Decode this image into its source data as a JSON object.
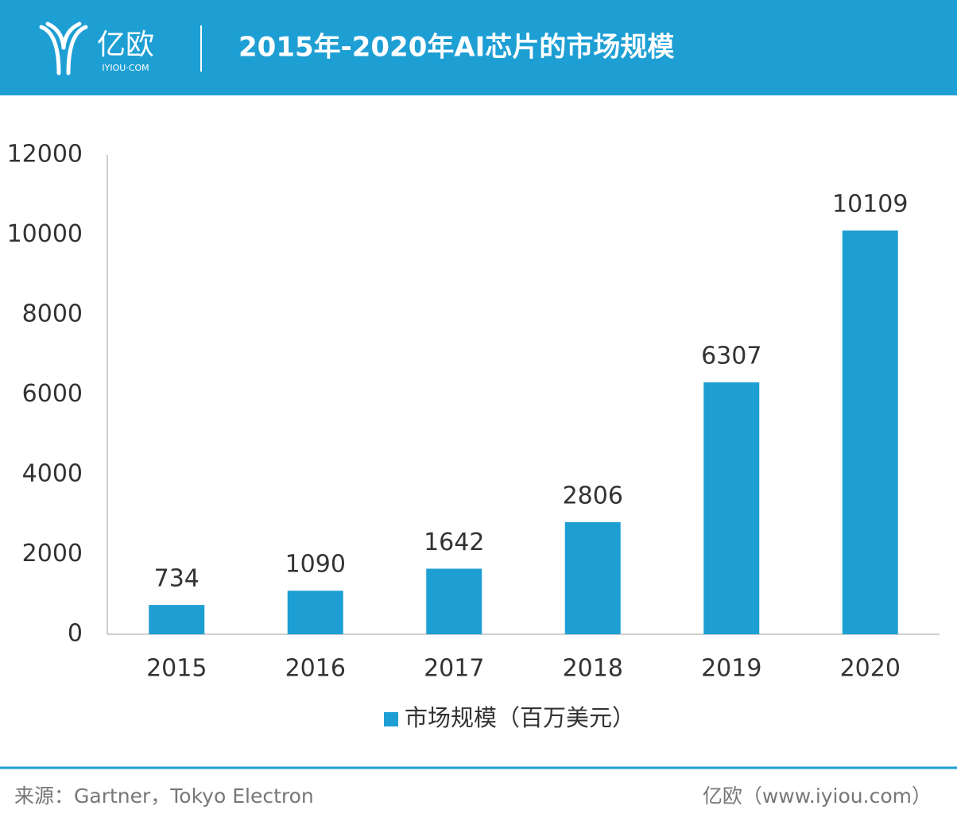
{
  "header": {
    "logo": "亿欧",
    "logo_sub": "IYIOU·COM"
  },
  "chart_data": {
    "type": "bar",
    "title": "2015年-2020年AI芯片的市场规模",
    "categories": [
      "2015",
      "2016",
      "2017",
      "2018",
      "2019",
      "2020"
    ],
    "series": [
      {
        "name": "市场规模（百万美元）",
        "color": "#1e9fd4",
        "values": [
          734,
          1090,
          1642,
          2806,
          6307,
          10109
        ]
      }
    ],
    "ylim": [
      0,
      12000
    ],
    "yticks": [
      0,
      2000,
      4000,
      6000,
      8000,
      10000,
      12000
    ],
    "grid": false,
    "legend": "bottom"
  },
  "footer": {
    "source": "来源：Gartner，Tokyo Electron",
    "site": "亿欧（www.iyiou.com）"
  }
}
